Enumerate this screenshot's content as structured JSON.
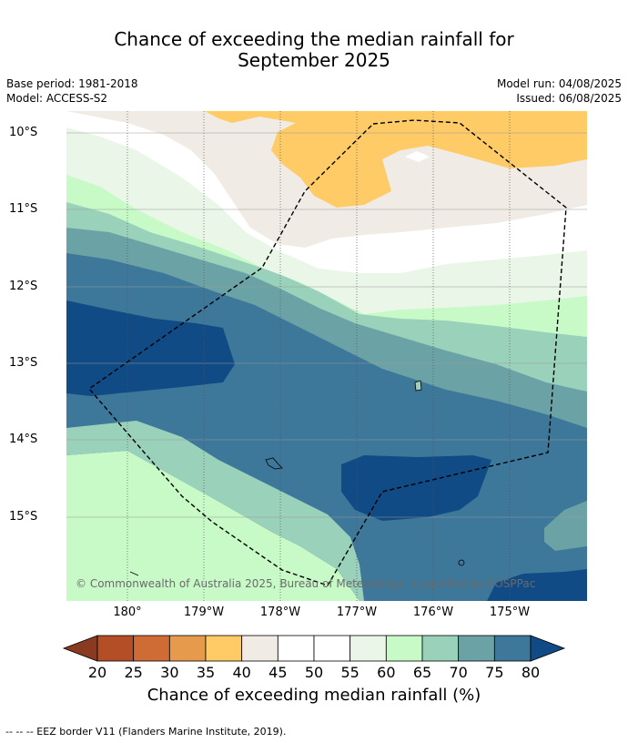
{
  "title_line1": "Chance of exceeding the median rainfall for",
  "title_line2": "September 2025",
  "base_period": "Base period: 1981-2018",
  "model": "Model: ACCESS-S2",
  "model_run": "Model run: 04/08/2025",
  "issued": "Issued: 06/08/2025",
  "copyright": "© Commonwealth of Australia 2025, Bureau of Meteorology, supported by COSPPac",
  "latitude_labels": [
    "10°S",
    "11°S",
    "12°S",
    "13°S",
    "14°S",
    "15°S"
  ],
  "longitude_labels": [
    "180°",
    "179°W",
    "178°W",
    "177°W",
    "176°W",
    "175°W"
  ],
  "colorbar": {
    "title": "Chance of exceeding median rainfall (%)",
    "ticks": [
      "20",
      "25",
      "30",
      "35",
      "40",
      "45",
      "50",
      "55",
      "60",
      "65",
      "70",
      "75",
      "80"
    ],
    "colors": [
      "#8b3a22",
      "#b34e27",
      "#cf6c35",
      "#e59a4c",
      "#fecb66",
      "#f0ebe5",
      "#ffffff",
      "#ffffff",
      "#eaf6e8",
      "#c8fac8",
      "#9ad1bb",
      "#6ba2a5",
      "#3d7799",
      "#114b85"
    ]
  },
  "footnote": "-- -- -- EEZ border V11 (Flanders Marine Institute, 2019)."
}
